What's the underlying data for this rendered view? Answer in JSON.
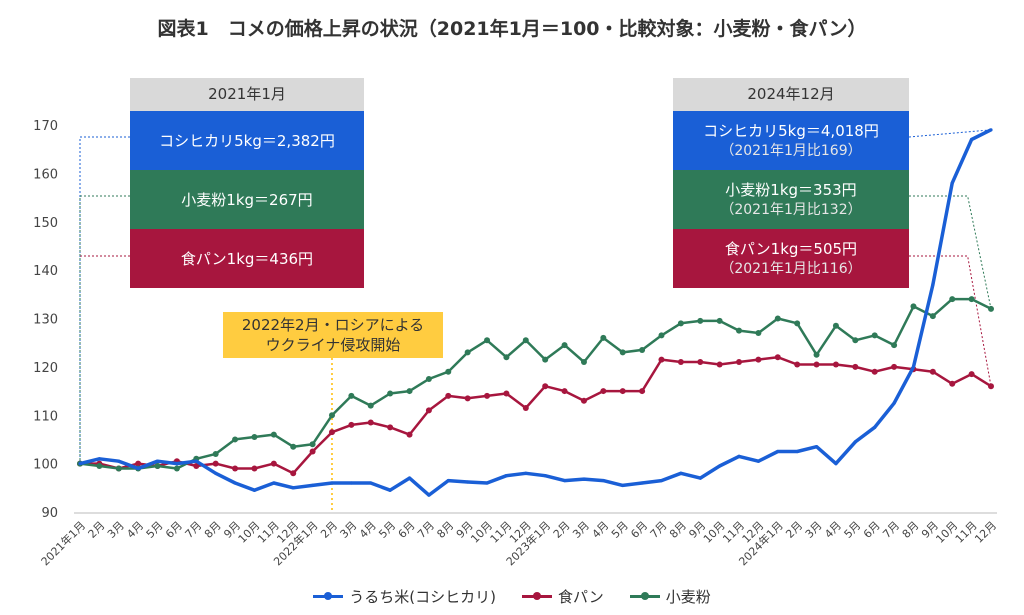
{
  "title": "図表1　コメの価格上昇の状況（2021年1月＝100・比較対象：小麦粉・食パン）",
  "boxes": {
    "left": {
      "header": "2021年1月",
      "rice": "コシヒカリ5kg＝2,382円",
      "wheat": "小麦粉1kg＝267円",
      "bread": "食パン1kg＝436円"
    },
    "right": {
      "header": "2024年12月",
      "rice": "コシヒカリ5kg＝4,018円",
      "rice_sub": "（2021年1月比169）",
      "wheat": "小麦粉1kg＝353円",
      "wheat_sub": "（2021年1月比132）",
      "bread": "食パン1kg＝505円",
      "bread_sub": "（2021年1月比116）"
    }
  },
  "annotation": {
    "line1": "2022年2月・ロシアによる",
    "line2": "ウクライナ侵攻開始"
  },
  "legend": {
    "rice": "うるち米(コシヒカリ)",
    "bread": "食パン",
    "wheat": "小麦粉"
  },
  "colors": {
    "rice": "#1a5fd6",
    "bread": "#a7163e",
    "wheat": "#2f7a58",
    "annotation": "#ffcc40"
  },
  "chart_data": {
    "type": "line",
    "x": [
      "2021年1月",
      "2月",
      "3月",
      "4月",
      "5月",
      "6月",
      "7月",
      "8月",
      "9月",
      "10月",
      "11月",
      "12月",
      "2022年1月",
      "2月",
      "3月",
      "4月",
      "5月",
      "6月",
      "7月",
      "8月",
      "9月",
      "10月",
      "11月",
      "12月",
      "2023年1月",
      "2月",
      "3月",
      "4月",
      "5月",
      "6月",
      "7月",
      "8月",
      "9月",
      "10月",
      "11月",
      "12月",
      "2024年1月",
      "2月",
      "3月",
      "4月",
      "5月",
      "6月",
      "7月",
      "8月",
      "9月",
      "10月",
      "11月",
      "12月"
    ],
    "ylim": [
      90,
      170
    ],
    "yticks": [
      90,
      100,
      110,
      120,
      130,
      140,
      150,
      160,
      170
    ],
    "grid": false,
    "legend_position": "bottom",
    "annotation_month": "2022年2月",
    "series": [
      {
        "key": "rice",
        "name": "うるち米(コシヒカリ)",
        "values": [
          100,
          101,
          100.5,
          99,
          100.5,
          100,
          100.5,
          98,
          96,
          94.5,
          96,
          95,
          95.5,
          96,
          96,
          96,
          94.5,
          97,
          93.5,
          96.5,
          96.2,
          96,
          97.5,
          98,
          97.5,
          96.5,
          96.8,
          96.5,
          95.5,
          96,
          96.5,
          98,
          97,
          99.5,
          101.5,
          100.5,
          102.5,
          102.5,
          103.5,
          100,
          104.5,
          107.5,
          112.5,
          120,
          137,
          158,
          167,
          169
        ]
      },
      {
        "key": "bread",
        "name": "食パン",
        "values": [
          100,
          100,
          99,
          100,
          99.5,
          100.5,
          99.5,
          100,
          99,
          99,
          100,
          98,
          102.5,
          106.5,
          108,
          108.5,
          107.5,
          106,
          111,
          114,
          113.5,
          114,
          114.5,
          111.5,
          116,
          115,
          113,
          115,
          115,
          115,
          121.5,
          121,
          121,
          120.5,
          121,
          121.5,
          122,
          120.5,
          120.5,
          120.5,
          120,
          119,
          120,
          119.5,
          119,
          116.5,
          118.5,
          116
        ]
      },
      {
        "key": "wheat",
        "name": "小麦粉",
        "values": [
          100,
          99.5,
          99,
          99,
          99.5,
          99,
          101,
          102,
          105,
          105.5,
          106,
          103.5,
          104,
          110,
          114,
          112,
          114.5,
          115,
          117.5,
          119,
          123,
          125.5,
          122,
          125.5,
          121.5,
          124.5,
          121,
          126,
          123,
          123.5,
          126.5,
          129,
          129.5,
          129.5,
          127.5,
          127,
          130,
          129,
          122.5,
          128.5,
          125.5,
          126.5,
          124.5,
          132.5,
          130.5,
          134,
          134,
          132
        ]
      }
    ]
  }
}
